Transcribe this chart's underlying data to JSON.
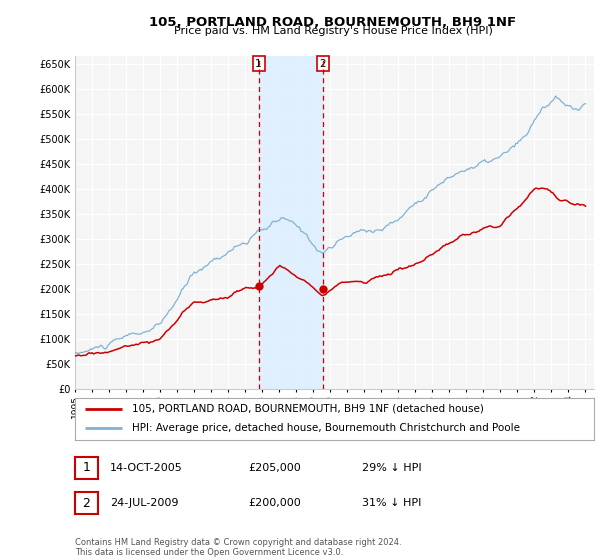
{
  "title": "105, PORTLAND ROAD, BOURNEMOUTH, BH9 1NF",
  "subtitle": "Price paid vs. HM Land Registry's House Price Index (HPI)",
  "ylabel_ticks": [
    "£0",
    "£50K",
    "£100K",
    "£150K",
    "£200K",
    "£250K",
    "£300K",
    "£350K",
    "£400K",
    "£450K",
    "£500K",
    "£550K",
    "£600K",
    "£650K"
  ],
  "ytick_values": [
    0,
    50000,
    100000,
    150000,
    200000,
    250000,
    300000,
    350000,
    400000,
    450000,
    500000,
    550000,
    600000,
    650000
  ],
  "ylim": [
    0,
    665000
  ],
  "xlim_start": 1995.0,
  "xlim_end": 2025.5,
  "hpi_color": "#7fb3d3",
  "price_color": "#cc0000",
  "sale1_x": 2005.79,
  "sale1_y": 205000,
  "sale2_x": 2009.56,
  "sale2_y": 200000,
  "legend_house_label": "105, PORTLAND ROAD, BOURNEMOUTH, BH9 1NF (detached house)",
  "legend_hpi_label": "HPI: Average price, detached house, Bournemouth Christchurch and Poole",
  "table_row1": [
    "1",
    "14-OCT-2005",
    "£205,000",
    "29% ↓ HPI"
  ],
  "table_row2": [
    "2",
    "24-JUL-2009",
    "£200,000",
    "31% ↓ HPI"
  ],
  "footnote": "Contains HM Land Registry data © Crown copyright and database right 2024.\nThis data is licensed under the Open Government Licence v3.0.",
  "background_color": "#ffffff",
  "plot_bg_color": "#f5f5f5",
  "grid_color": "#ffffff",
  "shade_color": "#ddeeff"
}
